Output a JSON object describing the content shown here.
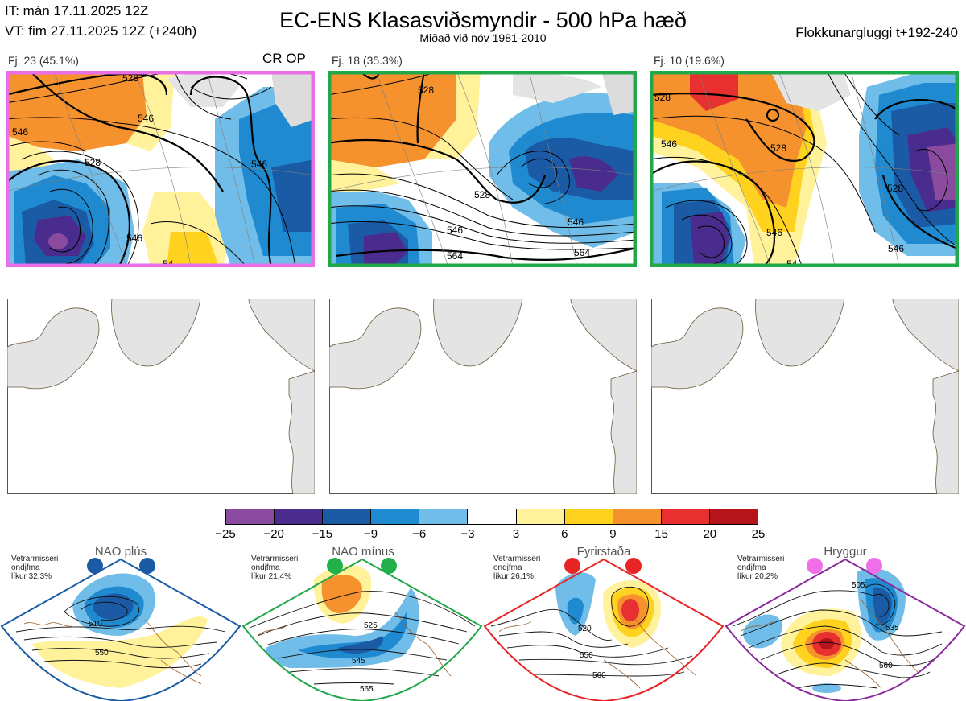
{
  "header": {
    "init_time": "IT: mán 17.11.2025 12Z",
    "valid_time": "VT: fim 27.11.2025 12Z  (+240h)",
    "title": "EC-ENS Klasasviðsmyndir - 500 hPa hæð",
    "subtitle": "Miðað við nóv 1981-2010",
    "window": "Flokkunargluggi t+192-240"
  },
  "clusters": [
    {
      "label": "Fj. 23 (45.1%)",
      "extra": "CR OP",
      "border": "#e96ee8",
      "contours": [
        "528",
        "546",
        "546",
        "528",
        "546",
        "54",
        "546"
      ]
    },
    {
      "label": "Fj. 18 (35.3%)",
      "extra": "",
      "border": "#22a84a",
      "contours": [
        "528",
        "528",
        "546",
        "546",
        "564",
        "564"
      ]
    },
    {
      "label": "Fj. 10 (19.6%)",
      "extra": "",
      "border": "#22a84a",
      "contours": [
        "528",
        "528",
        "546",
        "546",
        "528",
        "546",
        "54"
      ]
    }
  ],
  "colorbar": {
    "labels": [
      "−25",
      "−20",
      "−15",
      "−9",
      "−6",
      "−3",
      "3",
      "6",
      "9",
      "15",
      "20",
      "25"
    ],
    "colors": [
      "#8a4a9e",
      "#4a2c8e",
      "#1b5aa5",
      "#1f8ad0",
      "#6fbde8",
      "#ffffff",
      "#fff29a",
      "#ffd21f",
      "#f5922e",
      "#e83030",
      "#b4141a"
    ]
  },
  "regimes": [
    {
      "name": "NAO plús",
      "note": [
        "Vetrarmisseri",
        "ondjfma",
        "líkur 32,3%"
      ],
      "dot_color": "#1b5aa5",
      "frame": "#1b5aa5",
      "labels": [
        "510",
        "550"
      ]
    },
    {
      "name": "NAO mínus",
      "note": [
        "Vetrarmisseri",
        "ondjfma",
        "líkur 21,4%"
      ],
      "dot_color": "#22b04a",
      "frame": "#22a84a",
      "labels": [
        "525",
        "545",
        "565"
      ]
    },
    {
      "name": "Fyrirstaða",
      "note": [
        "Vetrarmisseri",
        "ondjfma",
        "líkur 26,1%"
      ],
      "dot_color": "#e82424",
      "frame": "#e82424",
      "labels": [
        "520",
        "550",
        "560"
      ]
    },
    {
      "name": "Hryggur",
      "note": [
        "Vetrarmisseri",
        "ondjfma",
        "líkur 20,2%"
      ],
      "dot_color": "#f06ee8",
      "frame": "#8a2a9a",
      "labels": [
        "505",
        "535",
        "560"
      ]
    }
  ]
}
